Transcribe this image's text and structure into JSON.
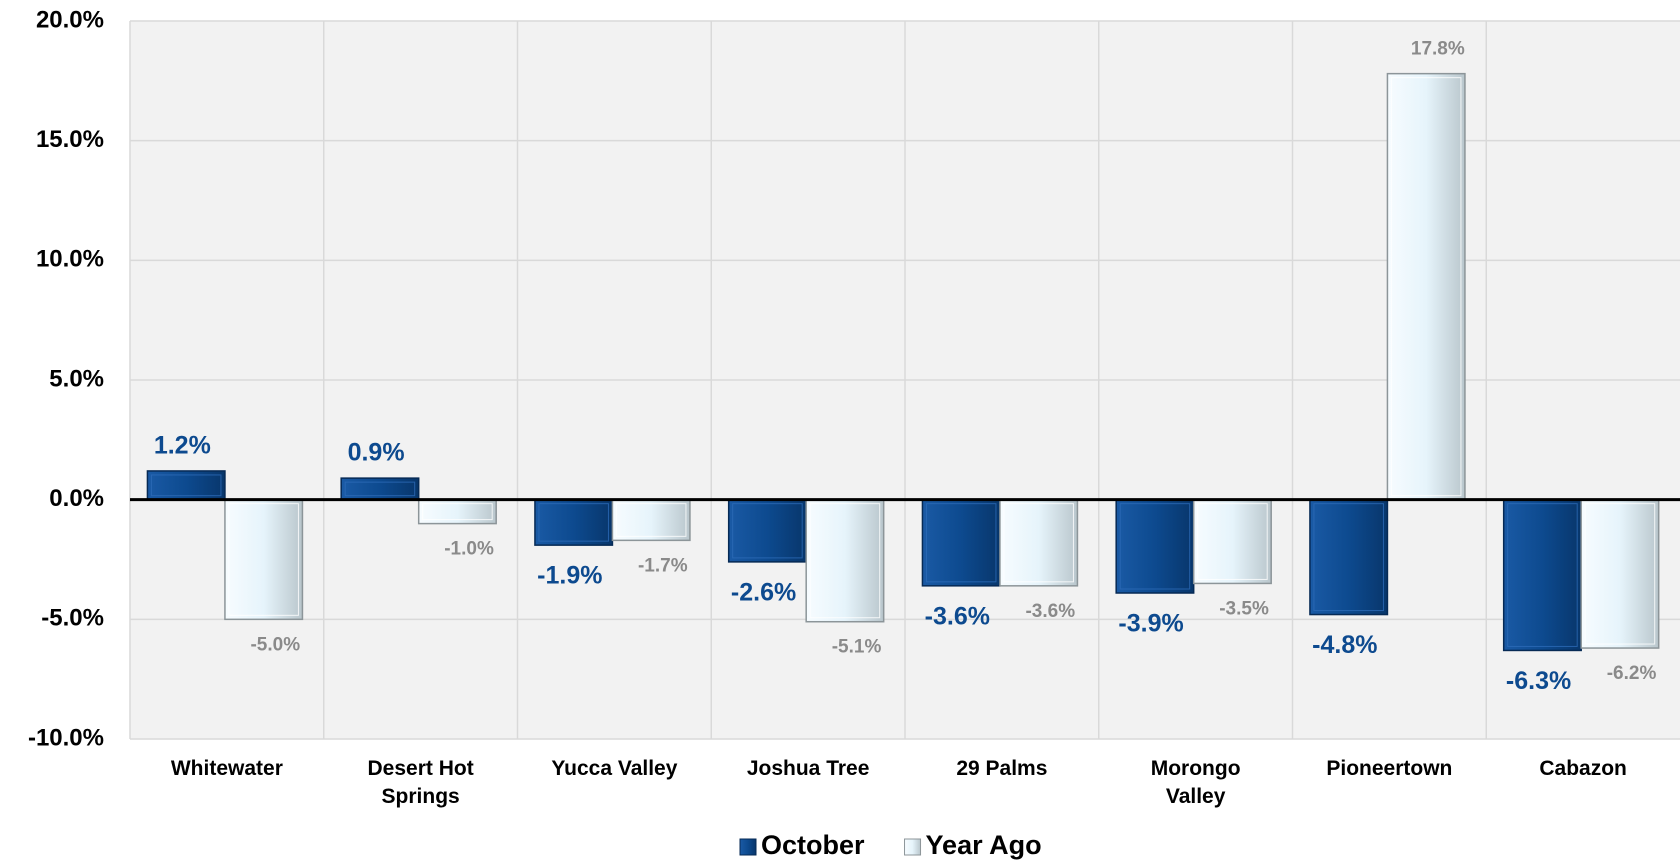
{
  "chart_data": {
    "type": "bar",
    "categories": [
      "Whitewater",
      "Desert Hot Springs",
      "Yucca Valley",
      "Joshua Tree",
      "29 Palms",
      "Morongo Valley",
      "Pioneertown",
      "Cabazon"
    ],
    "series": [
      {
        "name": "October",
        "color": "#0d4a8f",
        "label_color": "#0d4a8f",
        "values": [
          1.2,
          0.9,
          -1.9,
          -2.6,
          -3.6,
          -3.9,
          -4.8,
          -6.3
        ],
        "value_labels": [
          "1.2%",
          "0.9%",
          "-1.9%",
          "-2.6%",
          "-3.6%",
          "-3.9%",
          "-4.8%",
          "-6.3%"
        ]
      },
      {
        "name": "Year Ago",
        "color": "#e6f4fb",
        "label_color": "#8a8a8a",
        "values": [
          -5.0,
          -1.0,
          -1.7,
          -5.1,
          -3.6,
          -3.5,
          17.8,
          -6.2
        ],
        "value_labels": [
          "-5.0%",
          "-1.0%",
          "-1.7%",
          "-5.1%",
          "-3.6%",
          "-3.5%",
          "17.8%",
          "-6.2%"
        ]
      }
    ],
    "ylim": [
      -10,
      20
    ],
    "yticks": [
      {
        "value": -10,
        "label": "-10.0%"
      },
      {
        "value": -5,
        "label": "-5.0%"
      },
      {
        "value": 0,
        "label": "0.0%"
      },
      {
        "value": 5,
        "label": "5.0%"
      },
      {
        "value": 10,
        "label": "10.0%"
      },
      {
        "value": 15,
        "label": "15.0%"
      },
      {
        "value": 20,
        "label": "20.0%"
      }
    ],
    "grid": true,
    "legend": "bottom"
  }
}
